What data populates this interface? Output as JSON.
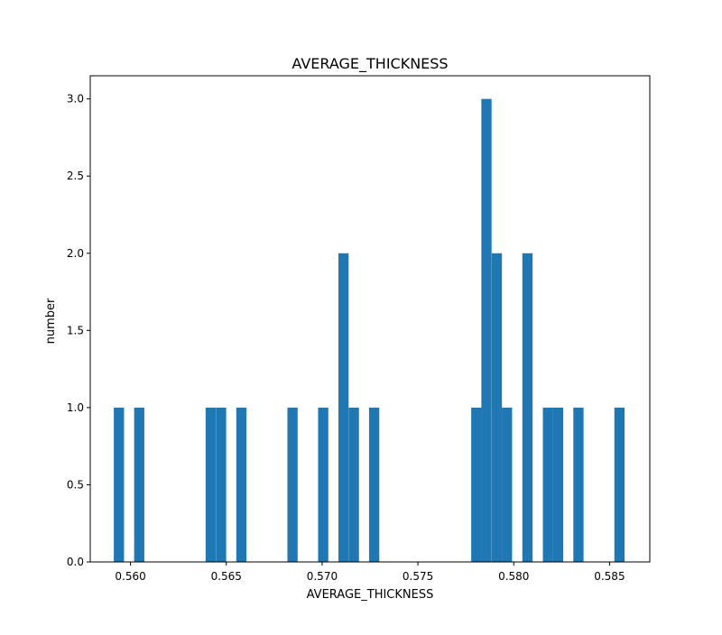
{
  "chart_data": {
    "type": "bar",
    "title": "AVERAGE_THICKNESS",
    "xlabel": "AVERAGE_THICKNESS",
    "ylabel": "number",
    "xlim": [
      0.5579,
      0.5871
    ],
    "ylim": [
      0,
      3.15
    ],
    "xticks": [
      {
        "value": 0.56,
        "label": "0.560"
      },
      {
        "value": 0.565,
        "label": "0.565"
      },
      {
        "value": 0.57,
        "label": "0.570"
      },
      {
        "value": 0.575,
        "label": "0.575"
      },
      {
        "value": 0.58,
        "label": "0.580"
      },
      {
        "value": 0.585,
        "label": "0.585"
      }
    ],
    "yticks": [
      {
        "value": 0.0,
        "label": "0.0"
      },
      {
        "value": 0.5,
        "label": "0.5"
      },
      {
        "value": 1.0,
        "label": "1.0"
      },
      {
        "value": 1.5,
        "label": "1.5"
      },
      {
        "value": 2.0,
        "label": "2.0"
      },
      {
        "value": 2.5,
        "label": "2.5"
      },
      {
        "value": 3.0,
        "label": "3.0"
      }
    ],
    "bar_color": "#1f77b4",
    "grid": false,
    "bin_width": 0.000533,
    "bins": [
      {
        "start": 0.55913,
        "count": 1
      },
      {
        "start": 0.56019,
        "count": 1
      },
      {
        "start": 0.56392,
        "count": 1
      },
      {
        "start": 0.56446,
        "count": 1
      },
      {
        "start": 0.56552,
        "count": 1
      },
      {
        "start": 0.56819,
        "count": 1
      },
      {
        "start": 0.56979,
        "count": 1
      },
      {
        "start": 0.57085,
        "count": 2
      },
      {
        "start": 0.57139,
        "count": 1
      },
      {
        "start": 0.57245,
        "count": 1
      },
      {
        "start": 0.57778,
        "count": 1
      },
      {
        "start": 0.57831,
        "count": 3
      },
      {
        "start": 0.57885,
        "count": 2
      },
      {
        "start": 0.57938,
        "count": 1
      },
      {
        "start": 0.58045,
        "count": 2
      },
      {
        "start": 0.58152,
        "count": 1
      },
      {
        "start": 0.58205,
        "count": 1
      },
      {
        "start": 0.58311,
        "count": 1
      },
      {
        "start": 0.58525,
        "count": 1
      }
    ]
  }
}
